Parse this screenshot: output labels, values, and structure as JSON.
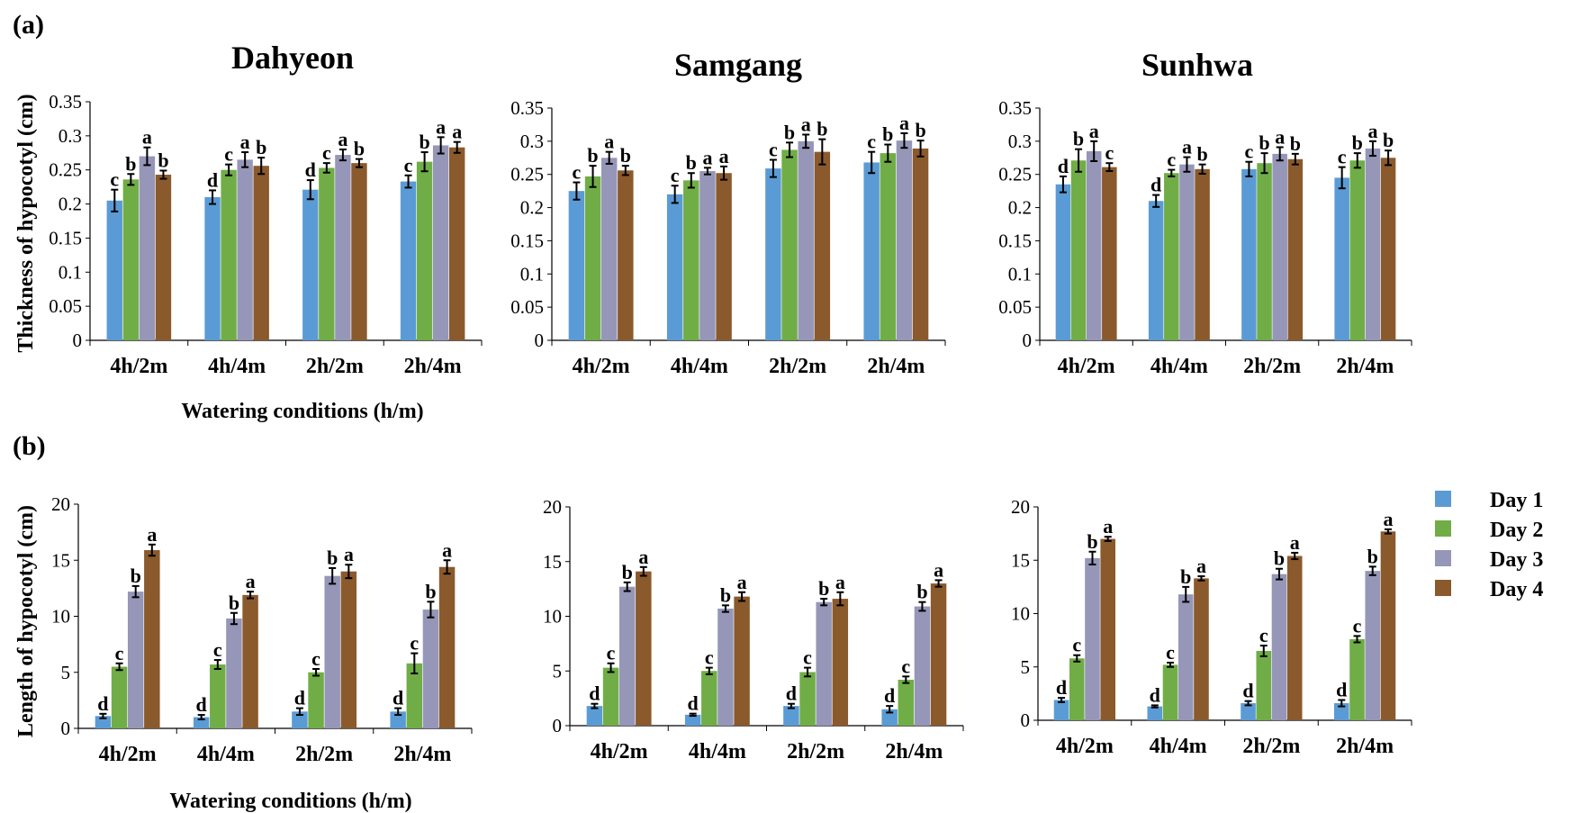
{
  "panel_labels": [
    "(a)",
    "(b)"
  ],
  "legend": [
    {
      "label": "Day 1",
      "color": "#5b9bd5"
    },
    {
      "label": "Day 2",
      "color": "#70ad47"
    },
    {
      "label": "Day 3",
      "color": "#9696b8"
    },
    {
      "label": "Day 4",
      "color": "#8a5a2c"
    }
  ],
  "axis_titles": {
    "a_ylabel": "Thickness of hypocotyl (cm)",
    "b_ylabel": "Length of hypocotyl (cm)",
    "a_xlabel": "Watering conditions (h/m)",
    "b_xlabel": "Watering conditions (h/m)"
  },
  "chart_data": [
    {
      "type": "bar",
      "panel": "(a)",
      "title": "Dahyeon",
      "categories": [
        "4h/2m",
        "4h/4m",
        "2h/2m",
        "2h/4m"
      ],
      "ylim": [
        0,
        0.35
      ],
      "yticks": [
        "0",
        "0.05",
        "0.1",
        "0.15",
        "0.2",
        "0.25",
        "0.3",
        "0.35"
      ],
      "series": [
        {
          "name": "Day 1",
          "values": [
            0.205,
            0.21,
            0.221,
            0.233
          ],
          "errors": [
            0.016,
            0.01,
            0.014,
            0.009
          ],
          "letters": [
            "c",
            "d",
            "d",
            "c"
          ]
        },
        {
          "name": "Day 2",
          "values": [
            0.236,
            0.25,
            0.253,
            0.262
          ],
          "errors": [
            0.008,
            0.008,
            0.007,
            0.014
          ],
          "letters": [
            "b",
            "c",
            "c",
            "b"
          ]
        },
        {
          "name": "Day 3",
          "values": [
            0.27,
            0.265,
            0.272,
            0.286
          ],
          "errors": [
            0.013,
            0.011,
            0.008,
            0.012
          ],
          "letters": [
            "a",
            "a",
            "a",
            "a"
          ]
        },
        {
          "name": "Day 4",
          "values": [
            0.243,
            0.256,
            0.26,
            0.283
          ],
          "errors": [
            0.006,
            0.012,
            0.006,
            0.008
          ],
          "letters": [
            "b",
            "b",
            "b",
            "a"
          ]
        }
      ]
    },
    {
      "type": "bar",
      "panel": "(a)",
      "title": "Samgang",
      "categories": [
        "4h/2m",
        "4h/4m",
        "2h/2m",
        "2h/4m"
      ],
      "ylim": [
        0,
        0.35
      ],
      "yticks": [
        "0",
        "0.05",
        "0.1",
        "0.15",
        "0.2",
        "0.25",
        "0.3",
        "0.35"
      ],
      "series": [
        {
          "name": "Day 1",
          "values": [
            0.225,
            0.22,
            0.259,
            0.268
          ],
          "errors": [
            0.013,
            0.013,
            0.013,
            0.016
          ],
          "letters": [
            "c",
            "c",
            "c",
            "c"
          ]
        },
        {
          "name": "Day 2",
          "values": [
            0.247,
            0.241,
            0.287,
            0.282
          ],
          "errors": [
            0.016,
            0.011,
            0.011,
            0.013
          ],
          "letters": [
            "b",
            "b",
            "b",
            "b"
          ]
        },
        {
          "name": "Day 3",
          "values": [
            0.275,
            0.255,
            0.3,
            0.301
          ],
          "errors": [
            0.009,
            0.005,
            0.01,
            0.011
          ],
          "letters": [
            "a",
            "a",
            "a",
            "a"
          ]
        },
        {
          "name": "Day 4",
          "values": [
            0.256,
            0.252,
            0.284,
            0.289
          ],
          "errors": [
            0.007,
            0.01,
            0.019,
            0.012
          ],
          "letters": [
            "b",
            "a",
            "b",
            "b"
          ]
        }
      ]
    },
    {
      "type": "bar",
      "panel": "(a)",
      "title": "Sunhwa",
      "categories": [
        "4h/2m",
        "4h/4m",
        "2h/2m",
        "2h/4m"
      ],
      "ylim": [
        0,
        0.35
      ],
      "yticks": [
        "0",
        "0.05",
        "0.1",
        "0.15",
        "0.2",
        "0.25",
        "0.3",
        "0.35"
      ],
      "series": [
        {
          "name": "Day 1",
          "values": [
            0.235,
            0.21,
            0.258,
            0.245
          ],
          "errors": [
            0.012,
            0.009,
            0.011,
            0.016
          ],
          "letters": [
            "d",
            "d",
            "c",
            "c"
          ]
        },
        {
          "name": "Day 2",
          "values": [
            0.271,
            0.252,
            0.267,
            0.271
          ],
          "errors": [
            0.017,
            0.005,
            0.015,
            0.011
          ],
          "letters": [
            "b",
            "c",
            "b",
            "b"
          ]
        },
        {
          "name": "Day 3",
          "values": [
            0.285,
            0.265,
            0.281,
            0.289
          ],
          "errors": [
            0.015,
            0.011,
            0.01,
            0.011
          ],
          "letters": [
            "a",
            "a",
            "a",
            "a"
          ]
        },
        {
          "name": "Day 4",
          "values": [
            0.261,
            0.258,
            0.273,
            0.275
          ],
          "errors": [
            0.006,
            0.007,
            0.008,
            0.011
          ],
          "letters": [
            "c",
            "b",
            "b",
            "b"
          ]
        }
      ]
    },
    {
      "type": "bar",
      "panel": "(b)",
      "title": "",
      "categories": [
        "4h/2m",
        "4h/4m",
        "2h/2m",
        "2h/4m"
      ],
      "ylim": [
        0,
        20
      ],
      "yticks": [
        "0",
        "5",
        "10",
        "15",
        "20"
      ],
      "series": [
        {
          "name": "Day 1",
          "values": [
            1.1,
            1.0,
            1.5,
            1.5
          ],
          "errors": [
            0.2,
            0.2,
            0.3,
            0.3
          ],
          "letters": [
            "d",
            "d",
            "d",
            "d"
          ]
        },
        {
          "name": "Day 2",
          "values": [
            5.5,
            5.7,
            5.0,
            5.8
          ],
          "errors": [
            0.3,
            0.4,
            0.3,
            0.9
          ],
          "letters": [
            "c",
            "c",
            "c",
            "c"
          ]
        },
        {
          "name": "Day 3",
          "values": [
            12.2,
            9.8,
            13.6,
            10.6
          ],
          "errors": [
            0.5,
            0.5,
            0.7,
            0.7
          ],
          "letters": [
            "b",
            "b",
            "b",
            "b"
          ]
        },
        {
          "name": "Day 4",
          "values": [
            15.9,
            11.9,
            14.0,
            14.4
          ],
          "errors": [
            0.5,
            0.3,
            0.6,
            0.6
          ],
          "letters": [
            "a",
            "a",
            "a",
            "a"
          ]
        }
      ]
    },
    {
      "type": "bar",
      "panel": "(b)",
      "title": "",
      "categories": [
        "4h/2m",
        "4h/4m",
        "2h/2m",
        "2h/4m"
      ],
      "ylim": [
        0,
        20
      ],
      "yticks": [
        "0",
        "5",
        "10",
        "15",
        "20"
      ],
      "series": [
        {
          "name": "Day 1",
          "values": [
            1.8,
            1.0,
            1.8,
            1.5
          ],
          "errors": [
            0.2,
            0.1,
            0.2,
            0.3
          ],
          "letters": [
            "d",
            "d",
            "d",
            "d"
          ]
        },
        {
          "name": "Day 2",
          "values": [
            5.3,
            5.0,
            4.9,
            4.2
          ],
          "errors": [
            0.4,
            0.3,
            0.4,
            0.3
          ],
          "letters": [
            "c",
            "c",
            "c",
            "c"
          ]
        },
        {
          "name": "Day 3",
          "values": [
            12.7,
            10.7,
            11.3,
            10.9
          ],
          "errors": [
            0.4,
            0.3,
            0.3,
            0.4
          ],
          "letters": [
            "b",
            "b",
            "b",
            "b"
          ]
        },
        {
          "name": "Day 4",
          "values": [
            14.1,
            11.8,
            11.6,
            13.0
          ],
          "errors": [
            0.4,
            0.4,
            0.6,
            0.3
          ],
          "letters": [
            "a",
            "a",
            "a",
            "a"
          ]
        }
      ]
    },
    {
      "type": "bar",
      "panel": "(b)",
      "title": "",
      "categories": [
        "4h/2m",
        "4h/4m",
        "2h/2m",
        "2h/4m"
      ],
      "ylim": [
        0,
        20
      ],
      "yticks": [
        "0",
        "5",
        "10",
        "15",
        "20"
      ],
      "series": [
        {
          "name": "Day 1",
          "values": [
            1.9,
            1.3,
            1.6,
            1.6
          ],
          "errors": [
            0.2,
            0.1,
            0.2,
            0.3
          ],
          "letters": [
            "d",
            "d",
            "d",
            "d"
          ]
        },
        {
          "name": "Day 2",
          "values": [
            5.8,
            5.2,
            6.5,
            7.6
          ],
          "errors": [
            0.3,
            0.2,
            0.5,
            0.3
          ],
          "letters": [
            "c",
            "c",
            "c",
            "c"
          ]
        },
        {
          "name": "Day 3",
          "values": [
            15.2,
            11.8,
            13.7,
            14.0
          ],
          "errors": [
            0.6,
            0.7,
            0.5,
            0.4
          ],
          "letters": [
            "b",
            "b",
            "b",
            "b"
          ]
        },
        {
          "name": "Day 4",
          "values": [
            17.0,
            13.3,
            15.4,
            17.7
          ],
          "errors": [
            0.2,
            0.2,
            0.3,
            0.2
          ],
          "letters": [
            "a",
            "a",
            "a",
            "a"
          ]
        }
      ]
    }
  ]
}
